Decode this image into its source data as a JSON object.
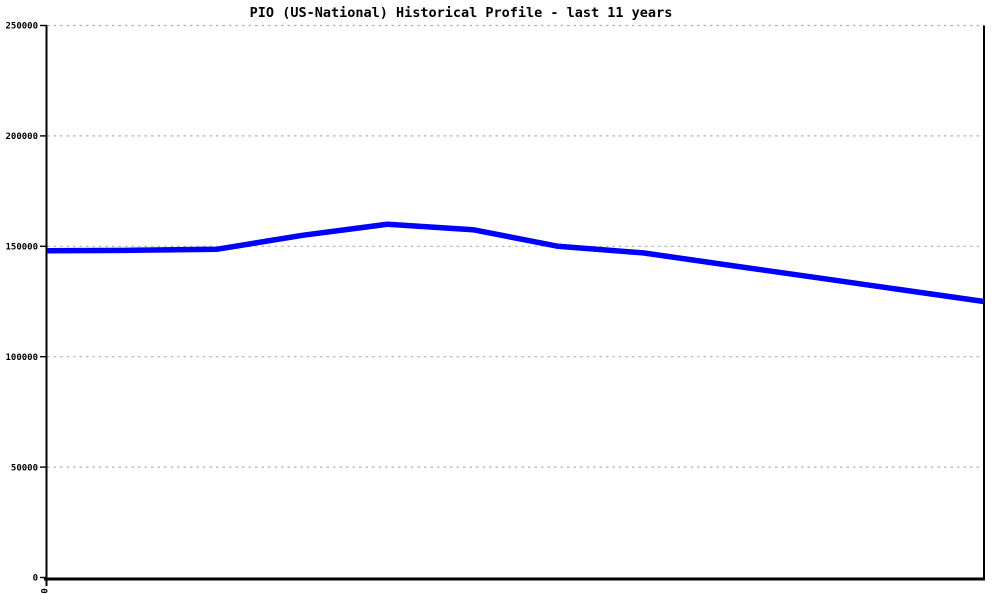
{
  "page": {
    "background_color": "#ffffff"
  },
  "chart_data": {
    "type": "line",
    "title": "PIO (US-National) Historical Profile - last 11 years",
    "xlabel": "",
    "ylabel": "",
    "x": [
      0,
      1,
      2,
      3,
      4,
      5,
      6,
      7,
      8,
      9,
      10,
      11
    ],
    "series": [
      {
        "name": "PIO (US-National)",
        "color": "#0000ff",
        "values": [
          148000,
          148200,
          148700,
          155000,
          160000,
          157500,
          150000,
          147000,
          141500,
          136000,
          130500,
          125000
        ]
      }
    ],
    "ylim": [
      0,
      250000
    ],
    "yticks": [
      0,
      50000,
      100000,
      150000,
      200000,
      250000
    ],
    "ytick_labels": [
      "0",
      "50000",
      "100000",
      "150000",
      "200000",
      "250000"
    ],
    "x_tick_labels": [
      "0"
    ],
    "x_tick_label_rotation_deg": 90,
    "grid": "horizontal-dashed",
    "grid_color": "#b0b0b0",
    "axis_color": "#000000",
    "title_color": "#000000",
    "legend": "none"
  }
}
